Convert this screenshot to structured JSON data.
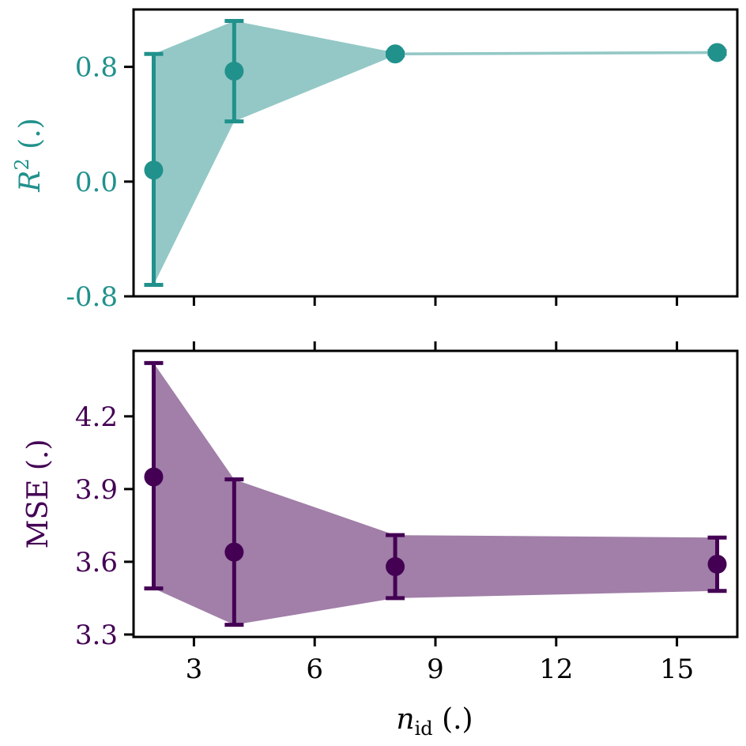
{
  "chart_data": [
    {
      "type": "line",
      "panel": "top",
      "ylabel_base": "R",
      "ylabel_sup": "2",
      "ylabel_rest": " (.)",
      "color": "#21918c",
      "band_color": "#93c8c6",
      "x": [
        2,
        4,
        8,
        16
      ],
      "y": [
        0.08,
        0.77,
        0.89,
        0.9
      ],
      "err_low": [
        -0.72,
        0.42,
        0.88,
        0.89
      ],
      "err_high": [
        0.89,
        1.12,
        0.9,
        0.91
      ],
      "ylim": [
        -0.8,
        1.2
      ],
      "yticks": [
        -0.8,
        0.0,
        0.8
      ],
      "ytick_labels": [
        "-0.8",
        "0.0",
        "0.8"
      ],
      "xlim": [
        1.5,
        16.5
      ],
      "xticks": [
        3,
        6,
        9,
        12,
        15
      ],
      "grid": false
    },
    {
      "type": "line",
      "panel": "bottom",
      "ylabel": "MSE (.)",
      "color": "#440154",
      "band_color": "#a17fa8",
      "x": [
        2,
        4,
        8,
        16
      ],
      "y": [
        3.95,
        3.64,
        3.58,
        3.59
      ],
      "err_low": [
        3.49,
        3.34,
        3.45,
        3.48
      ],
      "err_high": [
        4.42,
        3.94,
        3.71,
        3.7
      ],
      "ylim": [
        3.29,
        4.47
      ],
      "yticks": [
        3.3,
        3.6,
        3.9,
        4.2
      ],
      "ytick_labels": [
        "3.3",
        "3.6",
        "3.9",
        "4.2"
      ],
      "xlim": [
        1.5,
        16.5
      ],
      "xticks": [
        3,
        6,
        9,
        12,
        15
      ],
      "xtick_labels": [
        "3",
        "6",
        "9",
        "12",
        "15"
      ],
      "xlabel_base": "n",
      "xlabel_sub": "id",
      "xlabel_rest": " (.)",
      "grid": false
    }
  ]
}
